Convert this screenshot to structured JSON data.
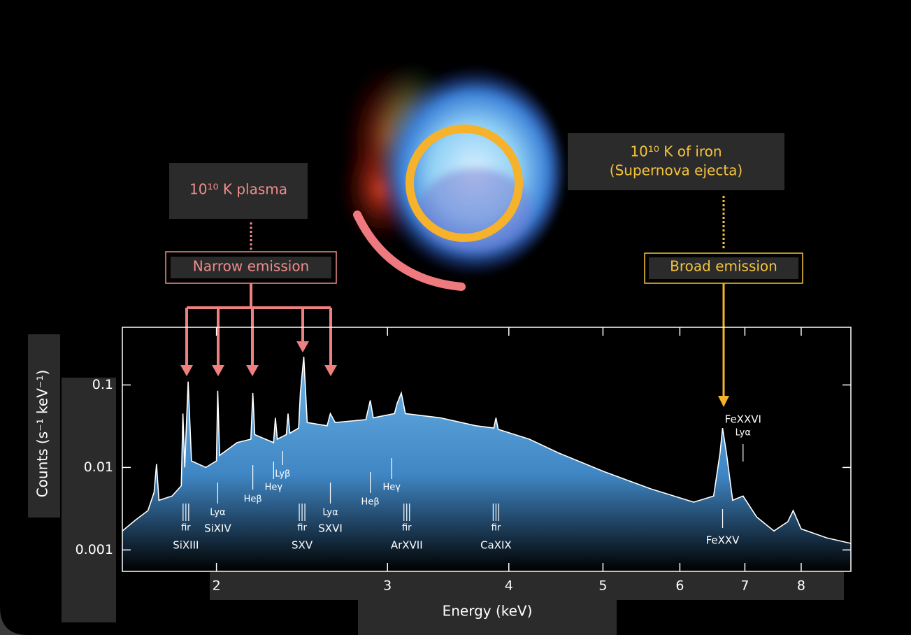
{
  "chart_data": {
    "type": "line",
    "x_label": "Energy (keV)",
    "y_label": "Counts (s⁻¹ keV⁻¹)",
    "x_log": true,
    "y_log": true,
    "xlim": [
      1.6,
      9
    ],
    "ylim": [
      0.00055,
      0.5
    ],
    "xticks": [
      2,
      3,
      4,
      5,
      6,
      7,
      8
    ],
    "yticks": [
      0.1,
      0.01,
      0.001
    ],
    "x": [
      1.6,
      1.65,
      1.7,
      1.725,
      1.735,
      1.745,
      1.8,
      1.84,
      1.847,
      1.855,
      1.87,
      1.885,
      1.95,
      2.0,
      2.006,
      2.015,
      2.1,
      2.17,
      2.18,
      2.19,
      2.29,
      2.3,
      2.31,
      2.36,
      2.37,
      2.38,
      2.43,
      2.44,
      2.46,
      2.48,
      2.6,
      2.62,
      2.65,
      2.85,
      2.88,
      2.9,
      3.05,
      3.07,
      3.1,
      3.13,
      3.4,
      3.7,
      3.86,
      3.88,
      3.9,
      4.2,
      4.5,
      5.0,
      5.6,
      6.2,
      6.5,
      6.6,
      6.64,
      6.7,
      6.8,
      6.97,
      7.2,
      7.5,
      7.75,
      7.85,
      8.0,
      8.5,
      9.0
    ],
    "values": [
      0.0017,
      0.0023,
      0.003,
      0.005,
      0.011,
      0.004,
      0.0045,
      0.006,
      0.045,
      0.01,
      0.11,
      0.012,
      0.01,
      0.012,
      0.085,
      0.014,
      0.02,
      0.022,
      0.08,
      0.025,
      0.02,
      0.04,
      0.022,
      0.025,
      0.045,
      0.026,
      0.03,
      0.08,
      0.22,
      0.035,
      0.032,
      0.045,
      0.035,
      0.038,
      0.065,
      0.04,
      0.045,
      0.06,
      0.08,
      0.045,
      0.04,
      0.032,
      0.03,
      0.04,
      0.029,
      0.022,
      0.015,
      0.009,
      0.0055,
      0.0038,
      0.0045,
      0.015,
      0.03,
      0.015,
      0.004,
      0.0045,
      0.0025,
      0.0017,
      0.0022,
      0.003,
      0.0018,
      0.0014,
      0.0012
    ],
    "color": "#ffffff",
    "fill_color": "#5aa6dc",
    "line_labels": [
      {
        "text": "fir",
        "x": 1.86
      },
      {
        "text": "SiXIII",
        "x": 1.86
      },
      {
        "text": "Lyα",
        "x": 2.006
      },
      {
        "text": "SiXIV",
        "x": 2.006
      },
      {
        "text": "Heβ",
        "x": 2.18
      },
      {
        "text": "Heγ",
        "x": 2.29
      },
      {
        "text": "Lyβ",
        "x": 2.34
      },
      {
        "text": "fir",
        "x": 2.45
      },
      {
        "text": "SXV",
        "x": 2.45
      },
      {
        "text": "Lyα",
        "x": 2.62
      },
      {
        "text": "SXVI",
        "x": 2.62
      },
      {
        "text": "Heβ",
        "x": 2.88
      },
      {
        "text": "Heγ",
        "x": 3.03
      },
      {
        "text": "fir",
        "x": 3.14
      },
      {
        "text": "ArXVII",
        "x": 3.14
      },
      {
        "text": "fir",
        "x": 3.88
      },
      {
        "text": "CaXIX",
        "x": 3.88
      },
      {
        "text": "FeXXV",
        "x": 6.64
      },
      {
        "text": "FeXXVI",
        "x": 6.97
      },
      {
        "text": "Lyα",
        "x": 6.97
      }
    ],
    "annotations": {
      "plasma": "10¹⁰ K plasma",
      "narrow": "Narrow emission",
      "iron": "10¹⁰ K of iron",
      "ejecta": "(Supernova ejecta)",
      "broad": "Broad emission"
    }
  }
}
